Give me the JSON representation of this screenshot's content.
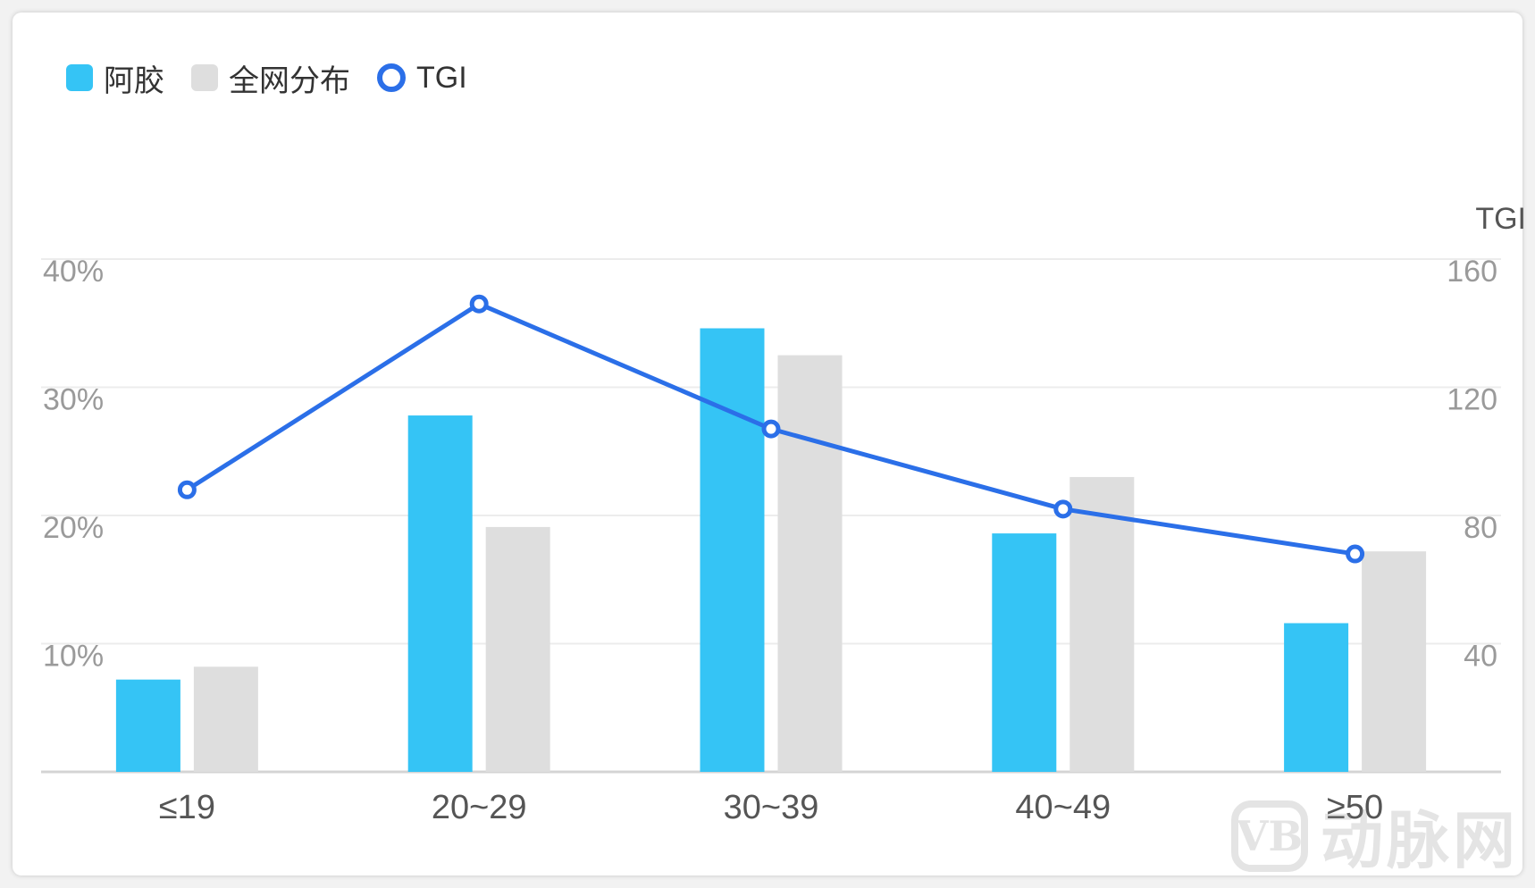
{
  "legend": {
    "primary_label": "阿胶",
    "secondary_label": "全网分布",
    "line_label": "TGI"
  },
  "colors": {
    "primary": "#35c4f5",
    "secondary": "#dedede",
    "line": "#2b6fe8"
  },
  "watermark": {
    "logo": "VB",
    "text": "动脉网"
  },
  "chart_data": {
    "type": "bar",
    "categories": [
      "≤19",
      "20~29",
      "30~39",
      "40~49",
      "≥50"
    ],
    "series": [
      {
        "name": "阿胶",
        "type": "bar",
        "axis": "left",
        "values": [
          7.2,
          27.8,
          34.6,
          18.6,
          11.6
        ]
      },
      {
        "name": "全网分布",
        "type": "bar",
        "axis": "left",
        "values": [
          8.2,
          19.1,
          32.5,
          23.0,
          17.2
        ]
      },
      {
        "name": "TGI",
        "type": "line",
        "axis": "right",
        "values": [
          88,
          146,
          107,
          82,
          68
        ]
      }
    ],
    "y_left": {
      "ticks": [
        "10%",
        "20%",
        "30%",
        "40%"
      ],
      "tick_values": [
        10,
        20,
        30,
        40
      ],
      "lim": [
        0,
        40
      ]
    },
    "y_right": {
      "label": "TGI",
      "ticks": [
        "40",
        "80",
        "120",
        "160"
      ],
      "tick_values": [
        40,
        80,
        120,
        160
      ],
      "lim": [
        0,
        160
      ]
    },
    "grid": true,
    "legend_position": "top-left"
  }
}
